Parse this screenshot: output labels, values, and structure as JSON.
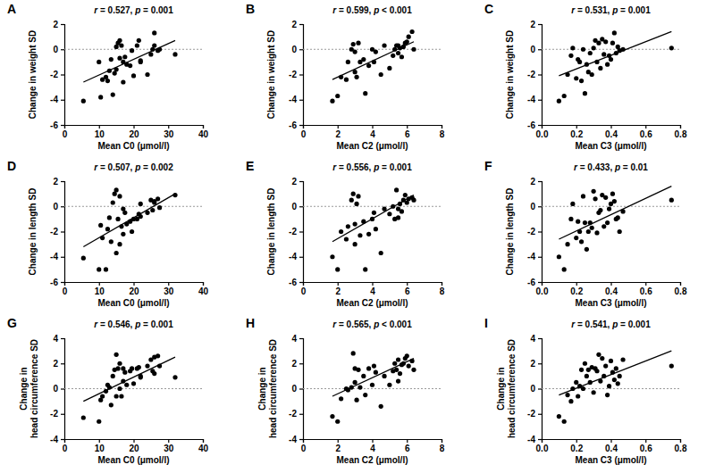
{
  "chart_data": [
    {
      "type": "scatter",
      "panel": "A",
      "annotation": "r = 0.527, p = 0.001",
      "xlabel": "Mean C0 (μmol/l)",
      "ylabel": "Change in weight SD",
      "xlim": [
        0,
        40
      ],
      "xticks": [
        0,
        10,
        20,
        30,
        40
      ],
      "ylim": [
        -6,
        2
      ],
      "yticks": [
        -6,
        -4,
        -2,
        0,
        2
      ],
      "color": "#000000",
      "marker": "circle",
      "hline": 0,
      "x": [
        5.5,
        10,
        10.5,
        11,
        12,
        12.5,
        13,
        13.5,
        14,
        14.5,
        15,
        15,
        15.5,
        16,
        16,
        16.5,
        17,
        17,
        17.5,
        18,
        19,
        19.5,
        20,
        21,
        21.5,
        22,
        22,
        24,
        25,
        25.5,
        26,
        26,
        27,
        27.5,
        32
      ],
      "values": [
        -4.1,
        -1.0,
        -3.8,
        -2.4,
        -2.2,
        -2.5,
        -1.7,
        -0.8,
        -3.6,
        -1.9,
        0.2,
        -1.6,
        0.5,
        0.7,
        -0.7,
        0.3,
        -1.0,
        -2.6,
        -0.6,
        -1.2,
        -1.3,
        -0.1,
        -2.1,
        0.3,
        0.7,
        -0.9,
        -1.0,
        -2.0,
        -0.4,
        0.0,
        1.3,
        0.3,
        -0.1,
        0.0,
        -0.4
      ],
      "fit": {
        "x": [
          5.5,
          32
        ],
        "y": [
          -2.6,
          0.7
        ]
      }
    },
    {
      "type": "scatter",
      "panel": "B",
      "annotation": "r = 0.599, p < 0.001",
      "xlabel": "Mean C2 (μmol/l)",
      "ylabel": "Change in weight SD",
      "xlim": [
        0,
        8
      ],
      "xticks": [
        0,
        2,
        4,
        6,
        8
      ],
      "ylim": [
        -6,
        2
      ],
      "yticks": [
        -6,
        -4,
        -2,
        0,
        2
      ],
      "color": "#000000",
      "marker": "circle",
      "hline": 0,
      "x": [
        1.7,
        2.0,
        2.2,
        2.5,
        2.6,
        2.8,
        2.9,
        3.0,
        3.0,
        3.1,
        3.2,
        3.3,
        3.5,
        3.6,
        3.8,
        4.0,
        4.1,
        4.2,
        4.5,
        4.7,
        5.0,
        5.2,
        5.3,
        5.4,
        5.5,
        5.5,
        5.6,
        5.7,
        5.8,
        5.9,
        6.0,
        6.1,
        6.3,
        6.4
      ],
      "values": [
        -4.1,
        -3.7,
        -2.2,
        -2.4,
        -1.0,
        0.0,
        0.4,
        -0.2,
        -1.8,
        -2.2,
        0.5,
        -1.0,
        -0.8,
        -3.5,
        -1.3,
        0.0,
        -1.0,
        -0.2,
        -2.0,
        0.3,
        -1.5,
        -0.5,
        0.0,
        0.3,
        0.3,
        -0.3,
        0.1,
        -0.6,
        0.2,
        0.5,
        0.6,
        1.0,
        1.4,
        0.0
      ],
      "fit": {
        "x": [
          1.7,
          6.4
        ],
        "y": [
          -2.4,
          0.6
        ]
      }
    },
    {
      "type": "scatter",
      "panel": "C",
      "annotation": "r = 0.531, p = 0.001",
      "xlabel": "Mean C3 (μmol/l)",
      "ylabel": "Change in weight SD",
      "xlim": [
        0,
        0.8
      ],
      "xticks": [
        {
          "value": 0,
          "label": "0.0"
        },
        0.2,
        0.4,
        0.6,
        0.8
      ],
      "ylim": [
        -6,
        2
      ],
      "yticks": [
        -6,
        -4,
        -2,
        0,
        2
      ],
      "color": "#000000",
      "marker": "circle",
      "hline": 0,
      "x": [
        0.1,
        0.13,
        0.15,
        0.17,
        0.18,
        0.2,
        0.21,
        0.22,
        0.23,
        0.24,
        0.25,
        0.26,
        0.27,
        0.28,
        0.29,
        0.3,
        0.31,
        0.32,
        0.33,
        0.34,
        0.35,
        0.36,
        0.37,
        0.38,
        0.39,
        0.4,
        0.41,
        0.42,
        0.43,
        0.44,
        0.45,
        0.47,
        0.75
      ],
      "values": [
        -4.1,
        -3.7,
        -2.0,
        -0.5,
        0.1,
        -2.3,
        -0.8,
        -1.0,
        -2.5,
        0.0,
        -3.5,
        -1.2,
        -1.8,
        -0.3,
        -2.0,
        0.1,
        0.7,
        -1.0,
        0.5,
        -1.5,
        0.8,
        -0.4,
        0.6,
        -1.2,
        -0.5,
        -0.8,
        0.5,
        1.3,
        -0.3,
        0.2,
        -0.1,
        0.0,
        0.1
      ],
      "fit": {
        "x": [
          0.1,
          0.75
        ],
        "y": [
          -2.1,
          1.4
        ]
      }
    },
    {
      "type": "scatter",
      "panel": "D",
      "annotation": "r = 0.507, p = 0.002",
      "xlabel": "Mean C0 (μmol/l)",
      "ylabel": "Change in length SD",
      "xlim": [
        0,
        40
      ],
      "xticks": [
        0,
        10,
        20,
        30,
        40
      ],
      "ylim": [
        -6,
        2
      ],
      "yticks": [
        -6,
        -4,
        -2,
        0,
        2
      ],
      "color": "#000000",
      "marker": "circle",
      "hline": 0,
      "x": [
        5.5,
        10,
        10.5,
        11,
        12,
        12.5,
        13,
        13.5,
        14,
        14.5,
        15,
        15,
        15.5,
        16,
        16,
        16.5,
        17,
        17,
        17.5,
        18,
        19,
        19.5,
        20,
        21,
        21.5,
        22,
        22,
        24,
        25,
        25.5,
        26,
        26,
        27,
        27.5,
        32
      ],
      "values": [
        -4.1,
        -5.0,
        -1.5,
        -2.5,
        -5.0,
        -1.8,
        -0.9,
        -2.8,
        0.3,
        1.0,
        1.3,
        -3.7,
        -1.0,
        -3.0,
        0.8,
        -1.6,
        -2.2,
        -0.2,
        -0.5,
        -1.4,
        -1.2,
        -2.0,
        -1.0,
        -1.0,
        -0.6,
        0.2,
        -0.8,
        -0.5,
        0.5,
        -0.3,
        0.4,
        0.3,
        0.6,
        -0.1,
        0.9
      ],
      "fit": {
        "x": [
          5.5,
          32
        ],
        "y": [
          -3.2,
          1.0
        ]
      }
    },
    {
      "type": "scatter",
      "panel": "E",
      "annotation": "r = 0.556, p = 0.001",
      "xlabel": "Mean C2 (μmol/l)",
      "ylabel": "Change in length SD",
      "xlim": [
        0,
        8
      ],
      "xticks": [
        0,
        2,
        4,
        6,
        8
      ],
      "ylim": [
        -6,
        2
      ],
      "yticks": [
        -6,
        -4,
        -2,
        0,
        2
      ],
      "color": "#000000",
      "marker": "circle",
      "hline": 0,
      "x": [
        1.7,
        2.0,
        2.2,
        2.5,
        2.6,
        2.8,
        2.9,
        3.0,
        3.0,
        3.1,
        3.2,
        3.3,
        3.5,
        3.6,
        3.8,
        4.0,
        4.1,
        4.2,
        4.5,
        4.7,
        5.0,
        5.2,
        5.3,
        5.4,
        5.5,
        5.5,
        5.6,
        5.7,
        5.8,
        5.9,
        6.0,
        6.1,
        6.3,
        6.4
      ],
      "values": [
        -4.0,
        -5.0,
        -2.0,
        -2.6,
        -1.6,
        0.5,
        1.0,
        -1.4,
        -3.0,
        0.2,
        0.8,
        -2.3,
        -1.2,
        -5.0,
        -2.2,
        -1.0,
        -0.5,
        -1.8,
        -3.7,
        -0.2,
        -0.6,
        0.0,
        -1.0,
        1.3,
        -0.9,
        -0.2,
        0.2,
        -0.4,
        0.5,
        0.9,
        0.3,
        0.6,
        0.7,
        0.5
      ],
      "fit": {
        "x": [
          1.7,
          6.4
        ],
        "y": [
          -2.8,
          0.9
        ]
      }
    },
    {
      "type": "scatter",
      "panel": "F",
      "annotation": "r = 0.433, p = 0.01",
      "xlabel": "Mean C3 (μmol/l)",
      "ylabel": "Change in length SD",
      "xlim": [
        0,
        0.8
      ],
      "xticks": [
        {
          "value": 0,
          "label": "0.0"
        },
        0.2,
        0.4,
        0.6,
        0.8
      ],
      "ylim": [
        -6,
        2
      ],
      "yticks": [
        -6,
        -4,
        -2,
        0,
        2
      ],
      "color": "#000000",
      "marker": "circle",
      "hline": 0,
      "x": [
        0.1,
        0.13,
        0.15,
        0.17,
        0.18,
        0.2,
        0.21,
        0.22,
        0.23,
        0.24,
        0.25,
        0.26,
        0.27,
        0.28,
        0.29,
        0.3,
        0.31,
        0.32,
        0.33,
        0.34,
        0.35,
        0.36,
        0.37,
        0.38,
        0.39,
        0.4,
        0.41,
        0.42,
        0.43,
        0.44,
        0.45,
        0.47,
        0.75
      ],
      "values": [
        -4.0,
        -5.0,
        -3.0,
        -1.0,
        0.2,
        -2.5,
        -1.2,
        -2.0,
        -2.8,
        0.8,
        -1.3,
        -3.4,
        -2.0,
        -1.3,
        -1.7,
        1.2,
        0.6,
        -2.1,
        -0.5,
        -0.3,
        0.9,
        -1.6,
        0.7,
        -1.3,
        -0.2,
        0.2,
        1.0,
        0.4,
        -1.0,
        -0.9,
        -2.0,
        -0.4,
        0.5
      ],
      "fit": {
        "x": [
          0.1,
          0.75
        ],
        "y": [
          -2.6,
          1.6
        ]
      }
    },
    {
      "type": "scatter",
      "panel": "G",
      "annotation": "r = 0.546, p = 0.001",
      "xlabel": "Mean C0 (μmol/l)",
      "ylabel": [
        "Change in",
        "head circumference SD"
      ],
      "xlim": [
        0,
        40
      ],
      "xticks": [
        0,
        10,
        20,
        30,
        40
      ],
      "ylim": [
        -4,
        4
      ],
      "yticks": [
        -4,
        -2,
        0,
        2,
        4
      ],
      "color": "#000000",
      "marker": "circle",
      "hline": 0,
      "x": [
        5.5,
        10,
        10.5,
        11,
        12,
        12.5,
        13,
        13.5,
        14,
        14.5,
        15,
        15,
        15.5,
        16,
        16,
        16.5,
        17,
        17,
        17.5,
        18,
        19,
        19.5,
        20,
        21,
        21.5,
        22,
        22,
        24,
        25,
        25.5,
        26,
        26,
        27,
        27.5,
        32
      ],
      "values": [
        -2.3,
        -2.6,
        -0.9,
        -0.6,
        -0.2,
        0.3,
        0.1,
        -1.3,
        1.0,
        1.5,
        2.7,
        -0.6,
        1.6,
        0.0,
        2.0,
        -0.6,
        0.6,
        1.6,
        1.3,
        0.3,
        1.4,
        1.6,
        0.4,
        1.6,
        1.7,
        0.9,
        1.0,
        1.8,
        2.3,
        1.4,
        2.5,
        1.2,
        2.6,
        1.8,
        0.9
      ],
      "fit": {
        "x": [
          5.5,
          32
        ],
        "y": [
          -1.0,
          2.5
        ]
      }
    },
    {
      "type": "scatter",
      "panel": "H",
      "annotation": "r = 0.565, p < 0.001",
      "xlabel": "Mean C2 (μmol/l)",
      "ylabel": [
        "Change in",
        "head circumference SD"
      ],
      "xlim": [
        0,
        8
      ],
      "xticks": [
        0,
        2,
        4,
        6,
        8
      ],
      "ylim": [
        -4,
        4
      ],
      "yticks": [
        -4,
        -2,
        0,
        2,
        4
      ],
      "color": "#000000",
      "marker": "circle",
      "hline": 0,
      "x": [
        1.7,
        2.0,
        2.2,
        2.5,
        2.6,
        2.8,
        2.9,
        3.0,
        3.0,
        3.1,
        3.2,
        3.3,
        3.5,
        3.6,
        3.8,
        4.0,
        4.1,
        4.2,
        4.5,
        4.7,
        5.0,
        5.2,
        5.3,
        5.4,
        5.5,
        5.5,
        5.6,
        5.7,
        5.8,
        5.9,
        6.0,
        6.1,
        6.3,
        6.4
      ],
      "values": [
        -2.2,
        -2.6,
        -0.8,
        0.0,
        -0.1,
        0.1,
        2.8,
        0.5,
        1.6,
        -0.9,
        1.5,
        0.1,
        1.0,
        -0.5,
        1.6,
        0.3,
        1.8,
        1.3,
        -1.4,
        1.0,
        0.3,
        1.4,
        2.0,
        1.5,
        2.3,
        0.6,
        1.2,
        1.9,
        2.0,
        2.4,
        2.6,
        1.8,
        2.2,
        1.5
      ],
      "fit": {
        "x": [
          1.7,
          6.4
        ],
        "y": [
          -0.6,
          2.4
        ]
      }
    },
    {
      "type": "scatter",
      "panel": "I",
      "annotation": "r = 0.541, p = 0.001",
      "xlabel": "Mean C3 (μmol/l)",
      "ylabel": [
        "Change in",
        "head circumference SD"
      ],
      "xlim": [
        0,
        0.8
      ],
      "xticks": [
        {
          "value": 0,
          "label": "0.0"
        },
        0.2,
        0.4,
        0.6,
        0.8
      ],
      "ylim": [
        -4,
        4
      ],
      "yticks": [
        -4,
        -2,
        0,
        2,
        4
      ],
      "color": "#000000",
      "marker": "circle",
      "hline": 0,
      "x": [
        0.1,
        0.13,
        0.15,
        0.17,
        0.18,
        0.2,
        0.21,
        0.22,
        0.23,
        0.24,
        0.25,
        0.26,
        0.27,
        0.28,
        0.29,
        0.3,
        0.31,
        0.32,
        0.33,
        0.34,
        0.35,
        0.36,
        0.37,
        0.38,
        0.39,
        0.4,
        0.41,
        0.42,
        0.43,
        0.44,
        0.45,
        0.47,
        0.75
      ],
      "values": [
        -2.2,
        -2.6,
        -0.5,
        -1.0,
        0.0,
        0.5,
        -0.6,
        0.2,
        1.5,
        0.0,
        2.0,
        1.0,
        1.5,
        0.5,
        1.7,
        -0.3,
        1.6,
        1.4,
        2.7,
        0.6,
        2.4,
        1.0,
        1.8,
        -0.5,
        0.2,
        2.2,
        1.3,
        0.7,
        1.6,
        0.4,
        1.0,
        2.3,
        1.8
      ],
      "fit": {
        "x": [
          0.1,
          0.75
        ],
        "y": [
          -0.5,
          3.0
        ]
      }
    }
  ]
}
